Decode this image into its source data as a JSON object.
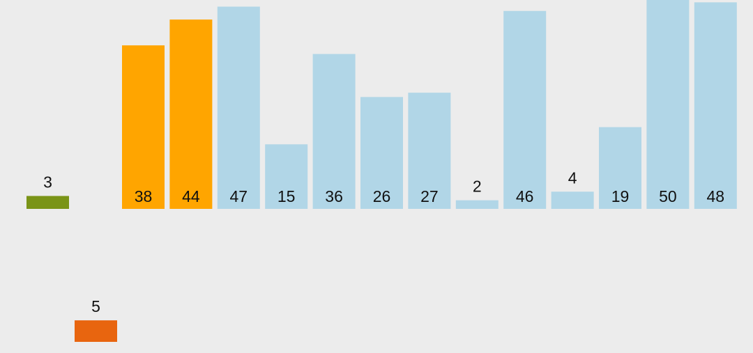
{
  "chart_data": {
    "type": "bar",
    "title": "",
    "xlabel": "",
    "ylabel": "",
    "values": [
      38,
      44,
      47,
      15,
      36,
      26,
      27,
      2,
      46,
      4,
      19,
      50,
      48
    ],
    "bar_states": [
      "highlighted",
      "highlighted",
      "default",
      "default",
      "default",
      "default",
      "default",
      "default",
      "default",
      "default",
      "default",
      "default",
      "default"
    ],
    "held_elements": [
      {
        "value": 3,
        "state": "current"
      },
      {
        "value": 5,
        "state": "incoming"
      }
    ],
    "grid": false,
    "legend": "none",
    "colors": {
      "default": "#b1d6e7",
      "highlighted": "#ffa500",
      "current": "#7a9417",
      "incoming": "#e8650f",
      "label": "#111111",
      "background": "#ececec"
    }
  }
}
